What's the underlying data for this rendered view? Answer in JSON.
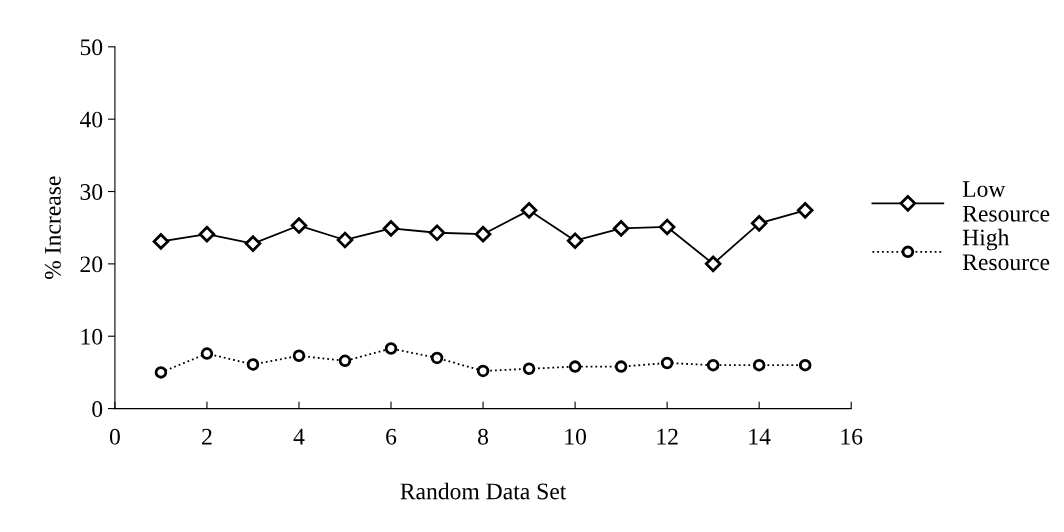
{
  "chart_data": {
    "type": "line",
    "xlabel": "Random Data Set",
    "ylabel": "% Increase",
    "x": [
      1,
      2,
      3,
      4,
      5,
      6,
      7,
      8,
      9,
      10,
      11,
      12,
      13,
      14,
      15
    ],
    "series": [
      {
        "name": "Low Resource",
        "color": "#000000",
        "marker": "diamond",
        "line_style": "solid",
        "values": [
          23.1,
          24.1,
          22.8,
          25.3,
          23.3,
          24.9,
          24.3,
          24.1,
          27.4,
          23.2,
          24.9,
          25.1,
          20.0,
          25.6,
          27.4
        ]
      },
      {
        "name": "High Resource",
        "color": "#000000",
        "marker": "circle",
        "line_style": "dotted",
        "values": [
          5.0,
          7.6,
          6.1,
          7.3,
          6.6,
          8.3,
          7.0,
          5.2,
          5.5,
          5.8,
          5.8,
          6.3,
          6.0,
          6.0,
          6.0
        ]
      }
    ],
    "xlim": [
      0,
      16
    ],
    "xticks": [
      0,
      2,
      4,
      6,
      8,
      10,
      12,
      14,
      16
    ],
    "ylim": [
      0,
      50
    ],
    "yticks": [
      0,
      10,
      20,
      30,
      40,
      50
    ],
    "grid": false,
    "legend": "right"
  }
}
